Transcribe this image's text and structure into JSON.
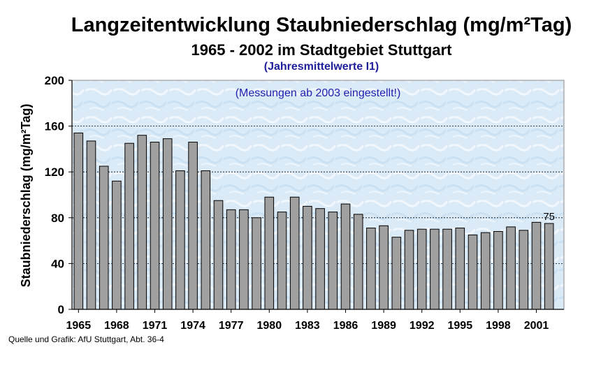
{
  "chart_data": {
    "type": "bar",
    "title": "Langzeitentwicklung Staubniederschlag (mg/m²Tag)",
    "subtitle": "1965 - 2002 im Stadtgebiet Stuttgart",
    "subtitle2": "(Jahresmittelwerte I1)",
    "annotation": "(Messungen ab 2003 eingestellt!)",
    "ylabel": "Staubniederschlag (mg/m²Tag)",
    "xlabel": "",
    "ylim": [
      0,
      200
    ],
    "yticks": [
      0,
      40,
      80,
      120,
      160,
      200
    ],
    "grid": true,
    "categories": [
      1965,
      1966,
      1967,
      1968,
      1969,
      1970,
      1971,
      1972,
      1973,
      1974,
      1975,
      1976,
      1977,
      1978,
      1979,
      1980,
      1981,
      1982,
      1983,
      1984,
      1985,
      1986,
      1987,
      1988,
      1989,
      1990,
      1991,
      1992,
      1993,
      1994,
      1995,
      1996,
      1997,
      1998,
      1999,
      2000,
      2001,
      2002
    ],
    "xtick_labels": [
      "1965",
      "1968",
      "1971",
      "1974",
      "1977",
      "1980",
      "1983",
      "1986",
      "1989",
      "1992",
      "1995",
      "1998",
      "2001"
    ],
    "values": [
      154,
      147,
      125,
      112,
      145,
      152,
      146,
      149,
      121,
      146,
      121,
      95,
      87,
      87,
      80,
      98,
      85,
      98,
      90,
      88,
      85,
      92,
      83,
      71,
      73,
      63,
      69,
      70,
      70,
      70,
      71,
      65,
      67,
      68,
      72,
      69,
      76,
      75
    ],
    "data_labels": [
      {
        "category": 2002,
        "text": "75"
      }
    ],
    "bar_color": "#a0a0a0",
    "plot_background": "#dbeaf7"
  },
  "footer": {
    "source": "Quelle und Grafik: AfU Stuttgart, Abt. 36-4"
  }
}
